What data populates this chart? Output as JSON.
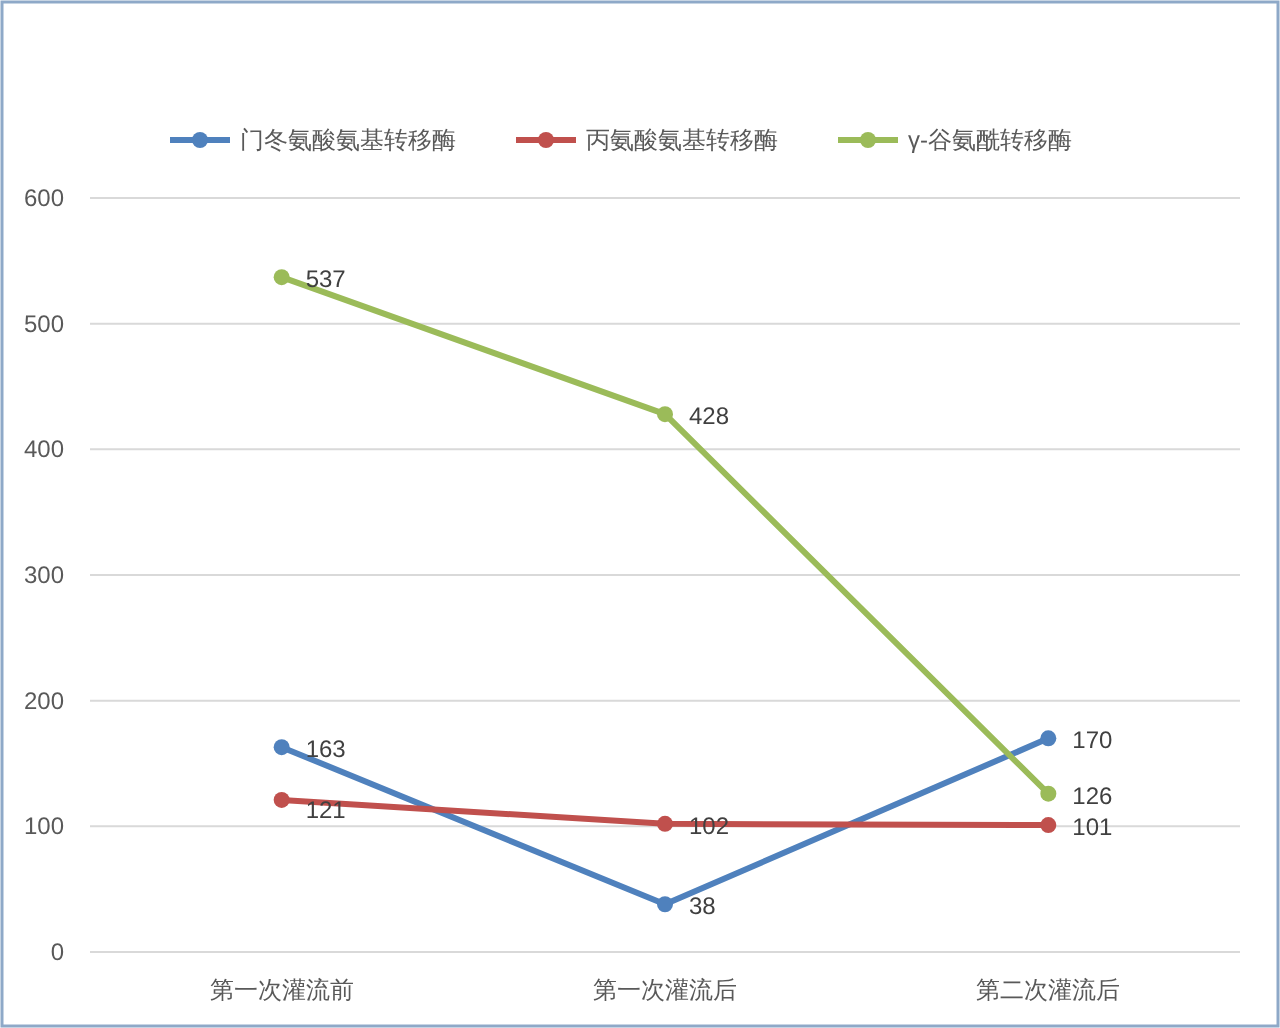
{
  "chart_data": {
    "type": "line",
    "categories": [
      "第一次灌流前",
      "第一次灌流后",
      "第二次灌流后"
    ],
    "series": [
      {
        "name": "门冬氨酸氨基转移酶",
        "color": "#4f81bd",
        "values": [
          163,
          38,
          170
        ]
      },
      {
        "name": "丙氨酸氨基转移酶",
        "color": "#c0504d",
        "values": [
          121,
          102,
          101
        ]
      },
      {
        "name": "γ-谷氨酰转移酶",
        "color": "#9bbb59",
        "values": [
          537,
          428,
          126
        ]
      }
    ],
    "ylim": [
      0,
      600
    ],
    "yticks": [
      0,
      100,
      200,
      300,
      400,
      500,
      600
    ],
    "grid": "y",
    "legend": "top",
    "marker": "circle",
    "data_labels": true
  }
}
